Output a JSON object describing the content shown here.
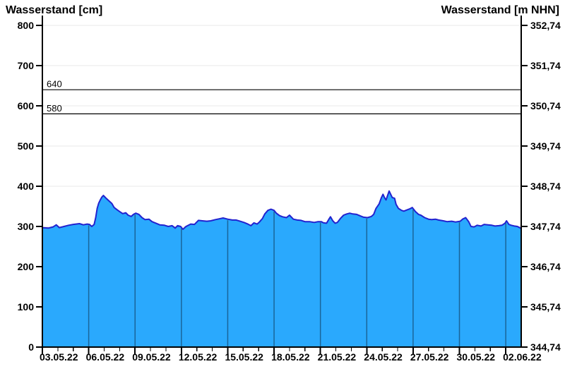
{
  "page": {
    "title_left": "Wasserstand [cm]",
    "title_right": "Wasserstand [m NHN]"
  },
  "chart_data": {
    "type": "area",
    "x_axis": {
      "tick_labels": [
        "03.05.22",
        "06.05.22",
        "09.05.22",
        "12.05.22",
        "15.05.22",
        "18.05.22",
        "21.05.22",
        "24.05.22",
        "27.05.22",
        "30.05.22",
        "02.06.22"
      ],
      "tick_days": [
        0,
        3,
        6,
        9,
        12,
        15,
        18,
        21,
        24,
        27,
        30
      ],
      "minor_tick_interval_days": 1,
      "span_days": 31
    },
    "y_left": {
      "label": "Wasserstand [cm]",
      "ticks": [
        800,
        700,
        600,
        500,
        400,
        300,
        200,
        100,
        0
      ],
      "range": [
        0,
        800
      ]
    },
    "y_right": {
      "label": "Wasserstand [m NHN]",
      "tick_labels": [
        "352,74",
        "351,74",
        "350,74",
        "349,74",
        "348,74",
        "347,74",
        "346,74",
        "345,74",
        "344,74"
      ]
    },
    "reference_lines": [
      {
        "label": "640",
        "value": 640
      },
      {
        "label": "580",
        "value": 580
      }
    ],
    "series": [
      {
        "name": "wasserstand-cm",
        "points": [
          [
            0,
            297
          ],
          [
            0.4,
            296
          ],
          [
            0.7,
            299
          ],
          [
            0.9,
            304
          ],
          [
            1.1,
            297
          ],
          [
            1.4,
            300
          ],
          [
            1.7,
            303
          ],
          [
            2.0,
            305
          ],
          [
            2.4,
            307
          ],
          [
            2.65,
            304
          ],
          [
            2.9,
            306
          ],
          [
            3.05,
            305
          ],
          [
            3.2,
            300
          ],
          [
            3.35,
            305
          ],
          [
            3.45,
            322
          ],
          [
            3.55,
            345
          ],
          [
            3.65,
            358
          ],
          [
            3.75,
            366
          ],
          [
            3.85,
            373
          ],
          [
            3.95,
            377
          ],
          [
            4.1,
            371
          ],
          [
            4.3,
            364
          ],
          [
            4.5,
            357
          ],
          [
            4.65,
            347
          ],
          [
            4.85,
            341
          ],
          [
            5.0,
            337
          ],
          [
            5.2,
            332
          ],
          [
            5.4,
            334
          ],
          [
            5.55,
            328
          ],
          [
            5.75,
            325
          ],
          [
            5.9,
            330
          ],
          [
            6.05,
            333
          ],
          [
            6.25,
            330
          ],
          [
            6.45,
            322
          ],
          [
            6.65,
            317
          ],
          [
            6.9,
            318
          ],
          [
            7.1,
            312
          ],
          [
            7.35,
            308
          ],
          [
            7.6,
            304
          ],
          [
            7.9,
            303
          ],
          [
            8.15,
            300
          ],
          [
            8.4,
            302
          ],
          [
            8.6,
            296
          ],
          [
            8.75,
            302
          ],
          [
            8.95,
            300
          ],
          [
            9.1,
            293
          ],
          [
            9.3,
            300
          ],
          [
            9.6,
            306
          ],
          [
            9.85,
            305
          ],
          [
            10.1,
            315
          ],
          [
            10.35,
            314
          ],
          [
            10.65,
            313
          ],
          [
            10.9,
            314
          ],
          [
            11.2,
            317
          ],
          [
            11.45,
            319
          ],
          [
            11.7,
            321
          ],
          [
            12.0,
            318
          ],
          [
            12.3,
            316
          ],
          [
            12.55,
            316
          ],
          [
            12.8,
            313
          ],
          [
            13.05,
            310
          ],
          [
            13.3,
            306
          ],
          [
            13.5,
            302
          ],
          [
            13.7,
            309
          ],
          [
            13.9,
            306
          ],
          [
            14.05,
            311
          ],
          [
            14.25,
            320
          ],
          [
            14.4,
            331
          ],
          [
            14.6,
            340
          ],
          [
            14.8,
            343
          ],
          [
            15.0,
            340
          ],
          [
            15.15,
            333
          ],
          [
            15.35,
            327
          ],
          [
            15.55,
            324
          ],
          [
            15.8,
            322
          ],
          [
            16.0,
            328
          ],
          [
            16.25,
            318
          ],
          [
            16.5,
            316
          ],
          [
            16.75,
            315
          ],
          [
            17.0,
            312
          ],
          [
            17.3,
            312
          ],
          [
            17.6,
            310
          ],
          [
            17.85,
            312
          ],
          [
            18.05,
            312
          ],
          [
            18.2,
            309
          ],
          [
            18.4,
            308
          ],
          [
            18.55,
            318
          ],
          [
            18.65,
            324
          ],
          [
            18.8,
            314
          ],
          [
            18.95,
            308
          ],
          [
            19.1,
            310
          ],
          [
            19.3,
            320
          ],
          [
            19.5,
            328
          ],
          [
            19.7,
            331
          ],
          [
            19.9,
            333
          ],
          [
            20.1,
            331
          ],
          [
            20.35,
            330
          ],
          [
            20.6,
            326
          ],
          [
            20.8,
            323
          ],
          [
            21.05,
            322
          ],
          [
            21.3,
            325
          ],
          [
            21.45,
            330
          ],
          [
            21.6,
            345
          ],
          [
            21.8,
            356
          ],
          [
            21.95,
            372
          ],
          [
            22.05,
            380
          ],
          [
            22.15,
            372
          ],
          [
            22.25,
            366
          ],
          [
            22.35,
            377
          ],
          [
            22.45,
            388
          ],
          [
            22.55,
            380
          ],
          [
            22.65,
            372
          ],
          [
            22.8,
            370
          ],
          [
            22.9,
            355
          ],
          [
            23.05,
            345
          ],
          [
            23.25,
            340
          ],
          [
            23.4,
            338
          ],
          [
            23.6,
            341
          ],
          [
            23.8,
            344
          ],
          [
            23.95,
            347
          ],
          [
            24.15,
            337
          ],
          [
            24.35,
            330
          ],
          [
            24.5,
            328
          ],
          [
            24.75,
            322
          ],
          [
            25.0,
            318
          ],
          [
            25.2,
            317
          ],
          [
            25.45,
            318
          ],
          [
            25.65,
            316
          ],
          [
            25.95,
            314
          ],
          [
            26.2,
            312
          ],
          [
            26.5,
            313
          ],
          [
            26.75,
            311
          ],
          [
            27.05,
            313
          ],
          [
            27.2,
            318
          ],
          [
            27.4,
            322
          ],
          [
            27.6,
            312
          ],
          [
            27.75,
            300
          ],
          [
            27.95,
            299
          ],
          [
            28.15,
            303
          ],
          [
            28.4,
            301
          ],
          [
            28.6,
            305
          ],
          [
            28.85,
            304
          ],
          [
            29.1,
            303
          ],
          [
            29.3,
            301
          ],
          [
            29.55,
            302
          ],
          [
            29.75,
            303
          ],
          [
            29.95,
            308
          ],
          [
            30.05,
            314
          ],
          [
            30.2,
            305
          ],
          [
            30.35,
            303
          ],
          [
            30.55,
            301
          ],
          [
            30.75,
            300
          ],
          [
            30.9,
            297
          ],
          [
            31.0,
            295
          ]
        ]
      }
    ],
    "colors": {
      "fill": "#2aa9fd",
      "line": "#2222cf",
      "grid": "#e8e8e8",
      "grid_in_fill": "#1a6599",
      "reference_line": "#000000",
      "axis": "#000000"
    }
  }
}
